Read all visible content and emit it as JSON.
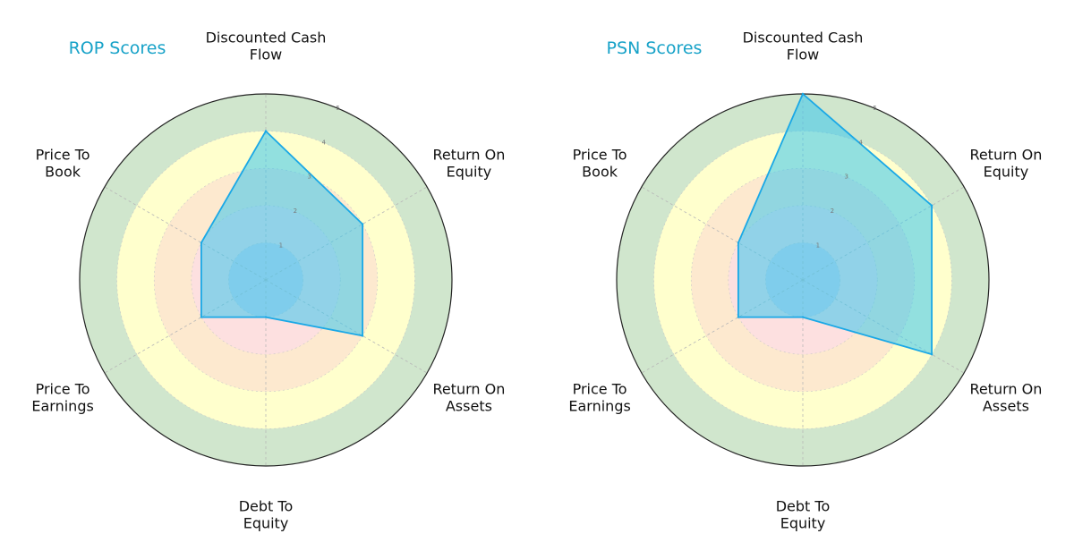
{
  "chart_data": [
    {
      "type": "radar",
      "title": "ROP Scores",
      "categories": [
        "Discounted Cash\nFlow",
        "Return On\nEquity",
        "Return On\nAssets",
        "Debt To\nEquity",
        "Price To\nEarnings",
        "Price To\nBook"
      ],
      "series": [
        {
          "values": [
            4,
            3,
            3,
            1,
            2,
            2
          ]
        }
      ],
      "rlim": [
        0,
        5
      ],
      "rticks": [
        "1",
        "2",
        "3",
        "4",
        "5"
      ],
      "grid": true
    },
    {
      "type": "radar",
      "title": "PSN Scores",
      "categories": [
        "Discounted Cash\nFlow",
        "Return On\nEquity",
        "Return On\nAssets",
        "Debt To\nEquity",
        "Price To\nEarnings",
        "Price To\nBook"
      ],
      "series": [
        {
          "values": [
            5,
            4,
            4,
            1,
            2,
            2
          ]
        }
      ],
      "rlim": [
        0,
        5
      ],
      "rticks": [
        "1",
        "2",
        "3",
        "4",
        "5"
      ],
      "grid": true
    }
  ],
  "colors": {
    "band_1": "#d5d5e8",
    "band_2": "#fde0e0",
    "band_3": "#fde9cf",
    "band_4": "#ffffcd",
    "band_5": "#d0e6cd",
    "series_fill": "#38c6ef",
    "series_stroke": "#1aa8e6",
    "title": "#17a2c8"
  }
}
